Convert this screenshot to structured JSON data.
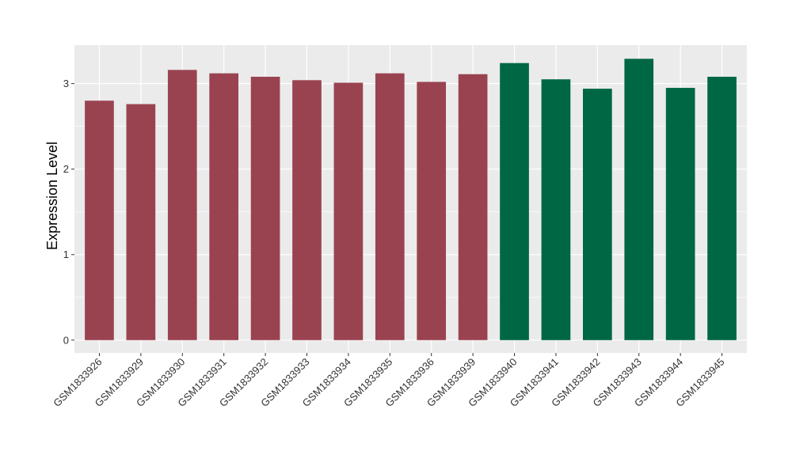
{
  "chart_data": {
    "type": "bar",
    "title": "",
    "xlabel": "",
    "ylabel": "Expression Level",
    "ylim": [
      -0.15,
      3.45
    ],
    "yticks": [
      0,
      1,
      2,
      3
    ],
    "grid": true,
    "legend": "none",
    "categories": [
      "GSM1833926",
      "GSM1833929",
      "GSM1833930",
      "GSM1833931",
      "GSM1833932",
      "GSM1833933",
      "GSM1833934",
      "GSM1833935",
      "GSM1833936",
      "GSM1833939",
      "GSM1833940",
      "GSM1833941",
      "GSM1833942",
      "GSM1833943",
      "GSM1833944",
      "GSM1833945"
    ],
    "values": [
      2.8,
      2.76,
      3.16,
      3.12,
      3.08,
      3.04,
      3.01,
      3.12,
      3.02,
      3.11,
      3.24,
      3.05,
      2.94,
      3.29,
      2.95,
      3.08
    ],
    "bar_colors": [
      "#9a4350",
      "#9a4350",
      "#9a4350",
      "#9a4350",
      "#9a4350",
      "#9a4350",
      "#9a4350",
      "#9a4350",
      "#9a4350",
      "#9a4350",
      "#006745",
      "#006745",
      "#006745",
      "#006745",
      "#006745",
      "#006745"
    ],
    "panel_background": "#ebebeb",
    "gridline_color": "#ffffff"
  }
}
